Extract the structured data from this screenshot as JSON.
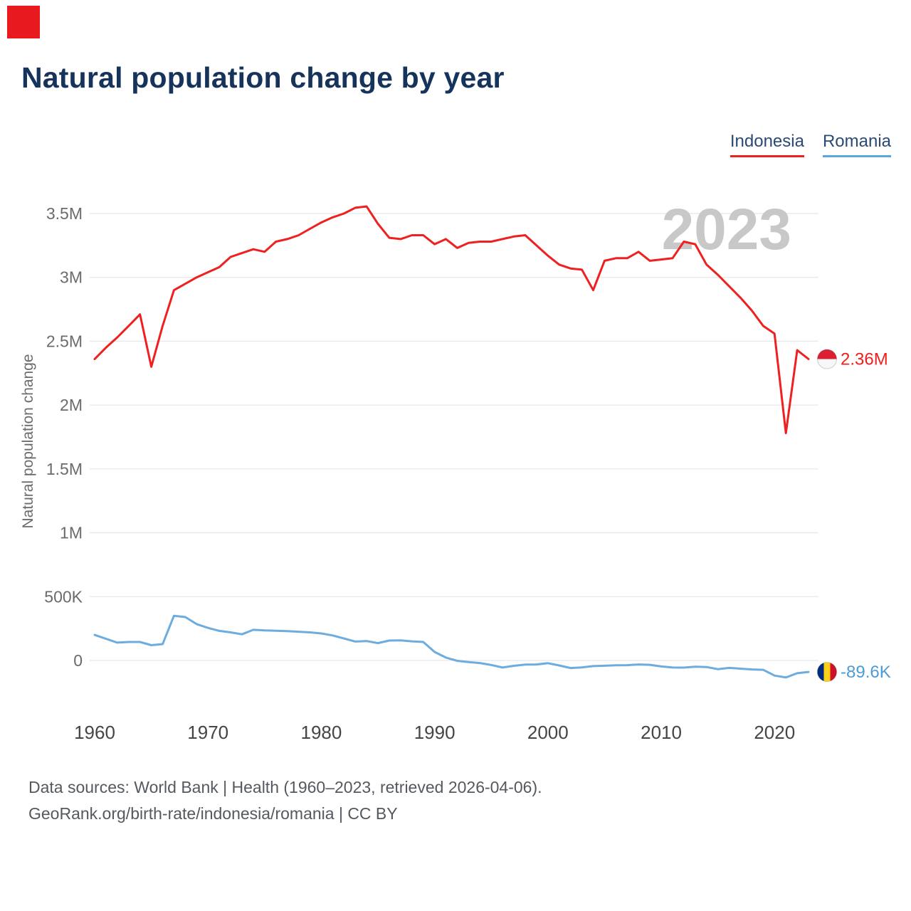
{
  "title": "Natural population change by year",
  "watermark": "2023",
  "colors": {
    "accent_red": "#e8191f",
    "indonesia_line": "#ee2020",
    "romania_line": "#6cacdf",
    "romania_label": "#4b9cd8",
    "grid": "#e8e8e8",
    "watermark": "#c8c8c8",
    "y_tick_text": "#6b6b6b",
    "x_tick_text": "#454545"
  },
  "legend": [
    {
      "label": "Indonesia",
      "color": "#ee2020"
    },
    {
      "label": "Romania",
      "color": "#5aa7e0"
    }
  ],
  "y_axis_label": "Natural population change",
  "end_markers": [
    {
      "series": "Indonesia",
      "label": "2.36M",
      "flag": "indonesia-flag-icon"
    },
    {
      "series": "Romania",
      "label": "-89.6K",
      "flag": "romania-flag-icon"
    }
  ],
  "footer": {
    "line1": "Data sources: World Bank | Health (1960–2023, retrieved 2026-04-06).",
    "line2": "GeoRank.org/birth-rate/indonesia/romania | CC BY"
  },
  "chart_data": {
    "type": "line",
    "title": "Natural population change by year",
    "xlabel": "",
    "ylabel": "Natural population change",
    "grid": true,
    "legend_position": "top-right",
    "ylim": [
      -250000,
      3700000
    ],
    "x_ticks": [
      1960,
      1970,
      1980,
      1990,
      2000,
      2010,
      2020
    ],
    "y_ticks": [
      {
        "label": "3.5M",
        "value": 3500000
      },
      {
        "label": "3M",
        "value": 3000000
      },
      {
        "label": "2.5M",
        "value": 2500000
      },
      {
        "label": "2M",
        "value": 2000000
      },
      {
        "label": "1.5M",
        "value": 1500000
      },
      {
        "label": "1M",
        "value": 1000000
      },
      {
        "label": "500K",
        "value": 500000
      },
      {
        "label": "0",
        "value": 0
      }
    ],
    "x": [
      1960,
      1961,
      1962,
      1963,
      1964,
      1965,
      1966,
      1967,
      1968,
      1969,
      1970,
      1971,
      1972,
      1973,
      1974,
      1975,
      1976,
      1977,
      1978,
      1979,
      1980,
      1981,
      1982,
      1983,
      1984,
      1985,
      1986,
      1987,
      1988,
      1989,
      1990,
      1991,
      1992,
      1993,
      1994,
      1995,
      1996,
      1997,
      1998,
      1999,
      2000,
      2001,
      2002,
      2003,
      2004,
      2005,
      2006,
      2007,
      2008,
      2009,
      2010,
      2011,
      2012,
      2013,
      2014,
      2015,
      2016,
      2017,
      2018,
      2019,
      2020,
      2021,
      2022,
      2023
    ],
    "series": [
      {
        "name": "Indonesia",
        "color": "#ee2020",
        "end_label": "2.36M",
        "values": [
          2360000,
          2450000,
          2530000,
          2620000,
          2710000,
          2300000,
          2620000,
          2900000,
          2950000,
          3000000,
          3040000,
          3080000,
          3160000,
          3190000,
          3220000,
          3200000,
          3280000,
          3300000,
          3330000,
          3380000,
          3430000,
          3470000,
          3500000,
          3545000,
          3555000,
          3420000,
          3310000,
          3300000,
          3330000,
          3330000,
          3260000,
          3300000,
          3230000,
          3270000,
          3280000,
          3280000,
          3300000,
          3320000,
          3330000,
          3250000,
          3170000,
          3100000,
          3070000,
          3060000,
          2900000,
          3130000,
          3150000,
          3150000,
          3200000,
          3130000,
          3140000,
          3150000,
          3280000,
          3260000,
          3100000,
          3020000,
          2930000,
          2840000,
          2740000,
          2620000,
          2560000,
          1780000,
          2430000,
          2360000
        ]
      },
      {
        "name": "Romania",
        "color": "#6cacdf",
        "end_label": "-89.6K",
        "values": [
          200000,
          170000,
          140000,
          145000,
          145000,
          120000,
          128000,
          350000,
          340000,
          285000,
          255000,
          232000,
          220000,
          205000,
          240000,
          235000,
          233000,
          230000,
          225000,
          220000,
          212000,
          196000,
          172000,
          148000,
          152000,
          136000,
          156000,
          157000,
          150000,
          145000,
          67000,
          23000,
          -3000,
          -13000,
          -20000,
          -35000,
          -55000,
          -42000,
          -32000,
          -31000,
          -21000,
          -39000,
          -59000,
          -54000,
          -44000,
          -41000,
          -38000,
          -37000,
          -31000,
          -34000,
          -47000,
          -55000,
          -56000,
          -49000,
          -51000,
          -68000,
          -58000,
          -64000,
          -70000,
          -73000,
          -118000,
          -133000,
          -100000,
          -89600
        ]
      }
    ]
  }
}
